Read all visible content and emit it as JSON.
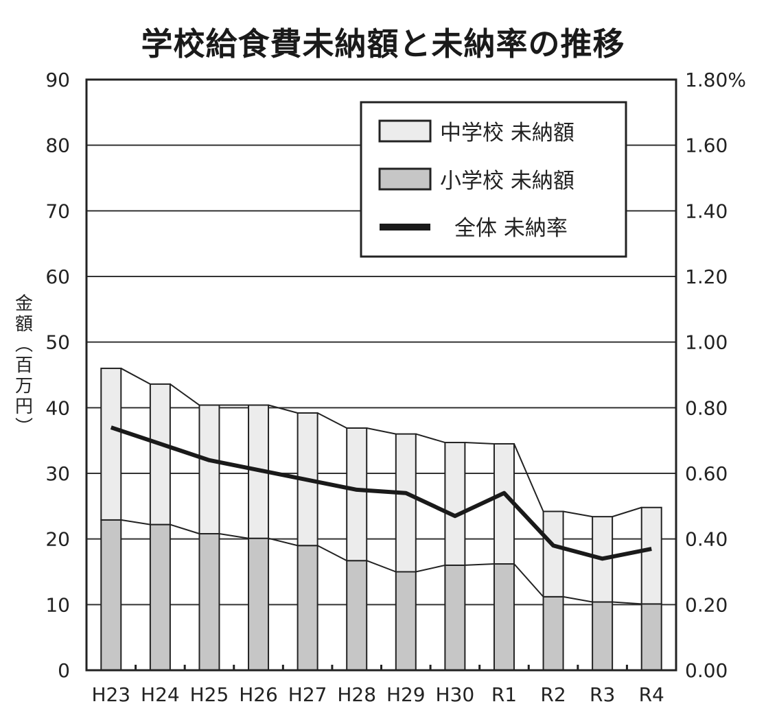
{
  "chart_data": {
    "type": "bar",
    "stacked": true,
    "title": "学校給食費未納額と未納率の推移",
    "xlabel": "",
    "ylabel": "金額（百万円）",
    "y2label": "",
    "categories": [
      "H23",
      "H24",
      "H25",
      "H26",
      "H27",
      "H28",
      "H29",
      "H30",
      "R1",
      "R2",
      "R3",
      "R4"
    ],
    "series": [
      {
        "name": "小学校 未納額",
        "type": "bar",
        "axis": "left",
        "color": "#c6c6c6",
        "values": [
          22.9,
          22.2,
          20.8,
          20.1,
          19.0,
          16.7,
          15.0,
          16.0,
          16.2,
          11.2,
          10.4,
          10.1
        ]
      },
      {
        "name": "中学校 未納額",
        "type": "bar",
        "axis": "left",
        "color": "#ececec",
        "values": [
          23.1,
          21.4,
          19.6,
          20.3,
          20.2,
          20.2,
          21.0,
          18.7,
          18.3,
          13.0,
          13.0,
          14.7
        ]
      },
      {
        "name": "全体 未納率",
        "type": "line",
        "axis": "right",
        "color": "#1a1a1a",
        "unit": "%",
        "values": [
          0.74,
          0.69,
          0.64,
          0.61,
          0.58,
          0.55,
          0.54,
          0.47,
          0.54,
          0.38,
          0.34,
          0.37
        ]
      }
    ],
    "totals": [
      46.0,
      43.6,
      40.4,
      40.4,
      39.2,
      36.9,
      36.0,
      34.7,
      34.5,
      24.2,
      23.4,
      24.8
    ],
    "ylim": [
      0,
      90
    ],
    "y2lim": [
      0,
      1.8
    ],
    "yticks": [
      "0",
      "10",
      "20",
      "30",
      "40",
      "50",
      "60",
      "70",
      "80",
      "90"
    ],
    "y2ticks": [
      "0.00",
      "0.20",
      "0.40",
      "0.60",
      "0.80",
      "1.00",
      "1.20",
      "1.40",
      "1.60",
      "1.80%"
    ],
    "grid": true,
    "legend_position": "top-right inside",
    "legend": [
      "中学校 未納額",
      "小学校 未納額",
      "全体 未納率"
    ]
  },
  "title": "学校給食費未納額と未納率の推移",
  "ylabel_chars": [
    "金",
    "額",
    "︵",
    "百",
    "万",
    "円",
    "︶"
  ]
}
